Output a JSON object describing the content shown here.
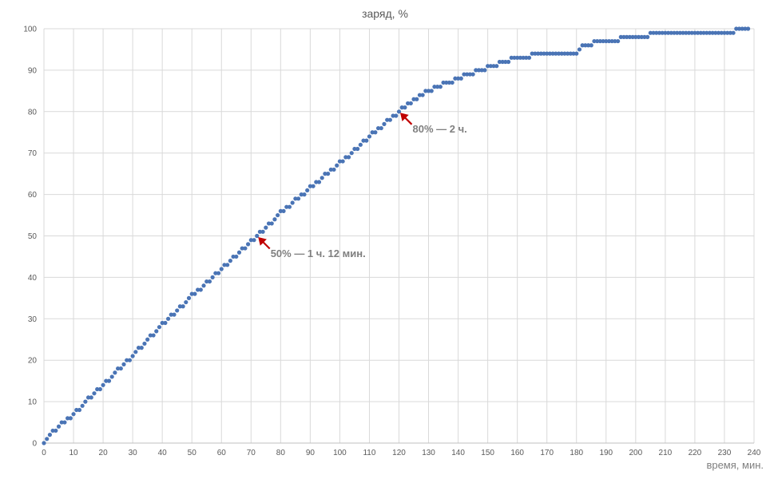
{
  "chart_data": {
    "type": "scatter",
    "title": "заряд, %",
    "xlabel": "время, мин.",
    "ylabel": "",
    "xlim": [
      0,
      240
    ],
    "ylim": [
      0,
      100
    ],
    "xticks": [
      0,
      10,
      20,
      30,
      40,
      50,
      60,
      70,
      80,
      90,
      100,
      110,
      120,
      130,
      140,
      150,
      160,
      170,
      180,
      190,
      200,
      210,
      220,
      230,
      240
    ],
    "yticks": [
      0,
      10,
      20,
      30,
      40,
      50,
      60,
      70,
      80,
      90,
      100
    ],
    "grid": true,
    "legend": "none",
    "marker_color": "#4a74b5",
    "arrow_color": "#c00000",
    "curve_knots": [
      [
        0,
        0
      ],
      [
        2,
        2
      ],
      [
        10,
        7
      ],
      [
        20,
        14
      ],
      [
        30,
        21
      ],
      [
        40,
        28.5
      ],
      [
        50,
        35.5
      ],
      [
        60,
        42
      ],
      [
        70,
        48.5
      ],
      [
        72,
        50
      ],
      [
        80,
        55.5
      ],
      [
        90,
        61.5
      ],
      [
        100,
        67.5
      ],
      [
        110,
        74
      ],
      [
        120,
        80
      ],
      [
        130,
        85
      ],
      [
        140,
        88
      ],
      [
        150,
        90.5
      ],
      [
        160,
        93
      ],
      [
        170,
        94
      ],
      [
        180,
        94
      ],
      [
        182,
        96
      ],
      [
        190,
        97
      ],
      [
        200,
        98
      ],
      [
        210,
        99
      ],
      [
        233,
        99
      ],
      [
        234,
        100
      ],
      [
        238,
        100
      ]
    ],
    "point_step_minutes": 1,
    "annotations": [
      {
        "text": "50% — 1 ч. 12 мин.",
        "x": 72,
        "y": 50
      },
      {
        "text": "80% — 2 ч.",
        "x": 120,
        "y": 80
      }
    ]
  }
}
